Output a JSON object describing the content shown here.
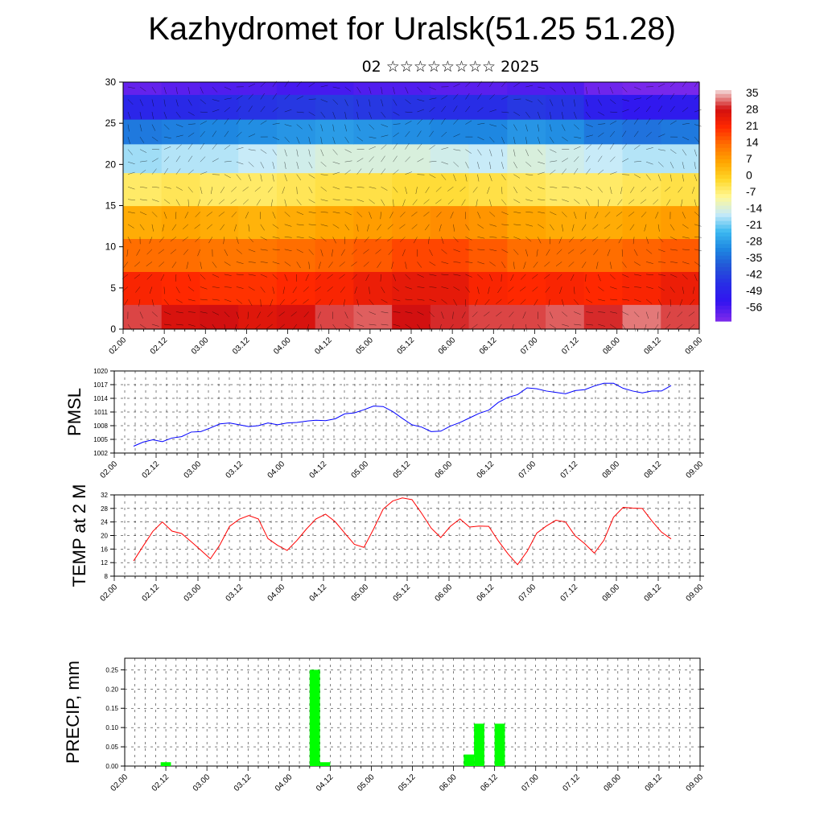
{
  "title": "Kazhydromet for Uralsk(51.25 51.28)",
  "subtitle": "02 ☆☆☆☆☆☆☆☆ 2025",
  "time_labels": [
    "02.00",
    "02.12",
    "03.00",
    "03.12",
    "04.00",
    "04.12",
    "05.00",
    "05.12",
    "06.00",
    "06.12",
    "07.00",
    "07.12",
    "08.00",
    "08.12",
    "09.00"
  ],
  "chart_data": [
    {
      "type": "heatmap",
      "title": "",
      "xlabel": "",
      "ylabel": "",
      "x": [
        "02.00",
        "02.12",
        "03.00",
        "03.12",
        "04.00",
        "04.12",
        "05.00",
        "05.12",
        "06.00",
        "06.12",
        "07.00",
        "07.12",
        "08.00",
        "08.12",
        "09.00"
      ],
      "ylim": [
        0,
        30
      ],
      "yticks": [
        0,
        5,
        10,
        15,
        20,
        25,
        30
      ],
      "colorbar_labels": [
        "35",
        "28",
        "21",
        "14",
        "7",
        "0",
        "-7",
        "-14",
        "-21",
        "-28",
        "-35",
        "-42",
        "-49",
        "-56"
      ],
      "colorbar_colors": [
        "#f0c8c8",
        "#d01010",
        "#ff3a00",
        "#ff7a00",
        "#ffb000",
        "#ffd820",
        "#fff890",
        "#c0e8f8",
        "#38b8f0",
        "#1888e0",
        "#2050d8",
        "#2828e8",
        "#3010f0",
        "#8a28e8"
      ],
      "values": [
        [
          30,
          27,
          28,
          26,
          27,
          30,
          31,
          28,
          29,
          30,
          30,
          31,
          29,
          32,
          30
        ],
        [
          22,
          21,
          20,
          20,
          21,
          22,
          24,
          25,
          25,
          22,
          21,
          22,
          21,
          22,
          24
        ],
        [
          14,
          14,
          13,
          13,
          14,
          15,
          16,
          18,
          18,
          16,
          14,
          14,
          14,
          15,
          16
        ],
        [
          6,
          7,
          6,
          5,
          6,
          7,
          8,
          9,
          10,
          9,
          7,
          6,
          6,
          7,
          8
        ],
        [
          -4,
          -3,
          -4,
          -4,
          -3,
          -2,
          -2,
          -1,
          -1,
          -2,
          -3,
          -4,
          -4,
          -3,
          -2
        ],
        [
          -16,
          -15,
          -15,
          -14,
          -13,
          -12,
          -12,
          -12,
          -13,
          -14,
          -12,
          -13,
          -14,
          -15,
          -15
        ],
        [
          -30,
          -29,
          -28,
          -27,
          -26,
          -25,
          -26,
          -27,
          -28,
          -28,
          -26,
          -27,
          -30,
          -31,
          -30
        ],
        [
          -44,
          -43,
          -42,
          -41,
          -40,
          -39,
          -40,
          -41,
          -42,
          -42,
          -40,
          -41,
          -46,
          -48,
          -47
        ],
        [
          -54,
          -53,
          -52,
          -52,
          -51,
          -51,
          -52,
          -52,
          -53,
          -53,
          -52,
          -52,
          -55,
          -56,
          -56
        ]
      ],
      "y_levels": [
        1,
        5,
        9,
        13,
        17,
        21,
        24,
        27,
        30
      ]
    },
    {
      "type": "line",
      "ylabel": "PMSL",
      "ylim": [
        1002,
        1020
      ],
      "yticks": [
        1002,
        1005,
        1008,
        1011,
        1014,
        1017,
        1020
      ],
      "series": [
        {
          "color": "#0000ff",
          "values": [
            1003.5,
            1004.4,
            1004.9,
            1004.5,
            1005.3,
            1005.6,
            1006.6,
            1006.7,
            1007.5,
            1008.4,
            1008.6,
            1008.2,
            1007.8,
            1008.0,
            1008.6,
            1008.2,
            1008.6,
            1008.7,
            1009.0,
            1009.2,
            1009.1,
            1009.5,
            1010.6,
            1010.8,
            1011.5,
            1012.3,
            1012.2,
            1011.1,
            1009.6,
            1008.2,
            1007.7,
            1006.7,
            1006.8,
            1007.9,
            1008.7,
            1009.7,
            1010.7,
            1011.4,
            1013.1,
            1014.2,
            1014.8,
            1016.3,
            1016.1,
            1015.6,
            1015.3,
            1015.0,
            1015.7,
            1015.9,
            1016.7,
            1017.3,
            1017.3,
            1016.2,
            1015.6,
            1015.2,
            1015.6,
            1015.6,
            1016.8
          ],
          "x_first": "02.00",
          "x_last": "09.00"
        }
      ]
    },
    {
      "type": "line",
      "ylabel": "TEMP at 2 M",
      "ylim": [
        8,
        32
      ],
      "yticks": [
        8,
        12,
        16,
        20,
        24,
        28,
        32
      ],
      "series": [
        {
          "color": "#ff0000",
          "values": [
            12.5,
            16.9,
            21.2,
            24.0,
            21.3,
            20.6,
            18.2,
            15.7,
            13.1,
            17.3,
            22.7,
            24.8,
            25.9,
            24.9,
            19.1,
            17.1,
            15.6,
            18.5,
            21.9,
            24.9,
            26.3,
            24.1,
            20.7,
            17.4,
            16.5,
            21.9,
            27.8,
            30.2,
            31.1,
            30.6,
            26.6,
            22.2,
            19.4,
            22.7,
            24.9,
            22.5,
            22.8,
            22.7,
            18.4,
            14.6,
            11.4,
            15.3,
            20.7,
            22.8,
            24.5,
            24.0,
            19.9,
            17.6,
            14.8,
            18.6,
            25.4,
            28.3,
            28.1,
            28.0,
            24.3,
            21.0,
            19.0
          ],
          "x_first": "02.00",
          "x_last": "09.00"
        }
      ]
    },
    {
      "type": "bar",
      "ylabel": "PRECIP, mm",
      "ylim": [
        0,
        0.28
      ],
      "yticks": [
        0.0,
        0.05,
        0.1,
        0.15,
        0.2,
        0.25
      ],
      "ytick_labels": [
        "0.00",
        "0.05",
        "0.10",
        "0.15",
        "0.20",
        "0.25"
      ],
      "color": "#00ff00",
      "bars": [
        {
          "t": 3.5,
          "value": 0.01
        },
        {
          "t": 18,
          "value": 0.25
        },
        {
          "t": 19,
          "value": 0.01
        },
        {
          "t": 33,
          "value": 0.03
        },
        {
          "t": 34,
          "value": 0.11
        },
        {
          "t": 36,
          "value": 0.11
        }
      ]
    }
  ]
}
